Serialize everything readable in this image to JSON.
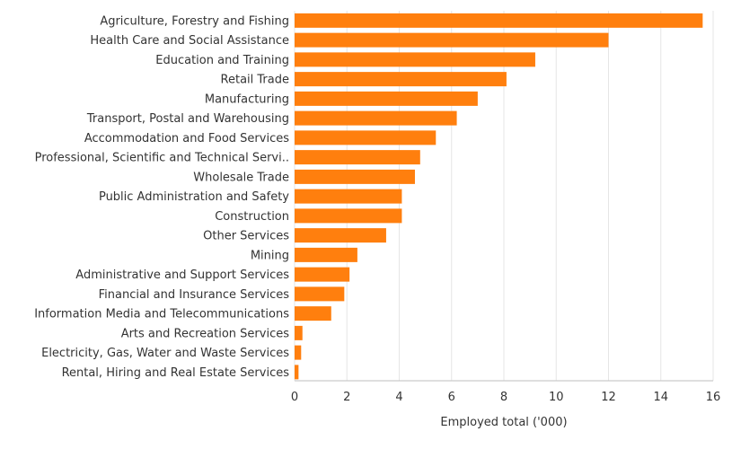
{
  "chart_data": {
    "type": "bar",
    "orientation": "horizontal",
    "categories": [
      "Agriculture, Forestry and Fishing",
      "Health Care and Social Assistance",
      "Education and Training",
      "Retail Trade",
      "Manufacturing",
      "Transport, Postal and Warehousing",
      "Accommodation and Food Services",
      "Professional, Scientific and Technical Servi..",
      "Wholesale Trade",
      "Public Administration and Safety",
      "Construction",
      "Other Services",
      "Mining",
      "Administrative and Support Services",
      "Financial and Insurance Services",
      "Information Media and Telecommunications",
      "Arts and Recreation Services",
      "Electricity, Gas, Water and Waste Services",
      "Rental, Hiring and Real Estate Services"
    ],
    "values": [
      15.6,
      12.0,
      9.2,
      8.1,
      7.0,
      6.2,
      5.4,
      4.8,
      4.6,
      4.1,
      4.1,
      3.5,
      2.4,
      2.1,
      1.9,
      1.4,
      0.3,
      0.25,
      0.15
    ],
    "xlabel": "Employed total ('000)",
    "ylabel": "",
    "xlim": [
      0,
      16
    ],
    "xticks": [
      0,
      2,
      4,
      6,
      8,
      10,
      12,
      14,
      16
    ],
    "grid": true,
    "bar_color": "#FF7F0E"
  }
}
